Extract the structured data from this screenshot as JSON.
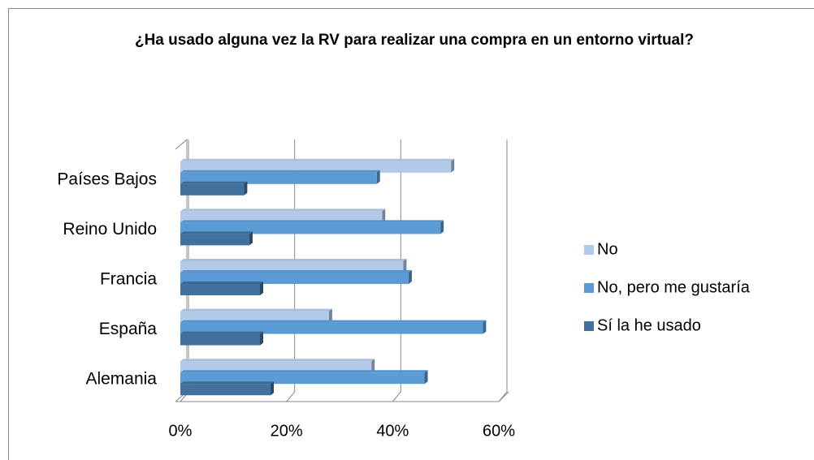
{
  "chart_data": {
    "type": "bar",
    "orientation": "horizontal",
    "title": "¿Ha usado alguna vez la RV para realizar una compra en un entorno virtual?",
    "categories": [
      "Países Bajos",
      "Reino Unido",
      "Francia",
      "España",
      "Alemania"
    ],
    "series": [
      {
        "name": "No",
        "color": "#b3c9e8",
        "values": [
          51,
          38,
          42,
          28,
          36
        ]
      },
      {
        "name": "No, pero me gustaría",
        "color": "#5b9bd5",
        "values": [
          37,
          49,
          43,
          57,
          46
        ]
      },
      {
        "name": "Sí la he usado",
        "color": "#41719c",
        "values": [
          12,
          13,
          15,
          15,
          17
        ]
      }
    ],
    "xlim": [
      0,
      60
    ],
    "xticks": [
      {
        "value": 0,
        "label": "0%"
      },
      {
        "value": 20,
        "label": "20%"
      },
      {
        "value": 40,
        "label": "40%"
      },
      {
        "value": 60,
        "label": "60%"
      }
    ],
    "grid": true,
    "legend": "right"
  }
}
